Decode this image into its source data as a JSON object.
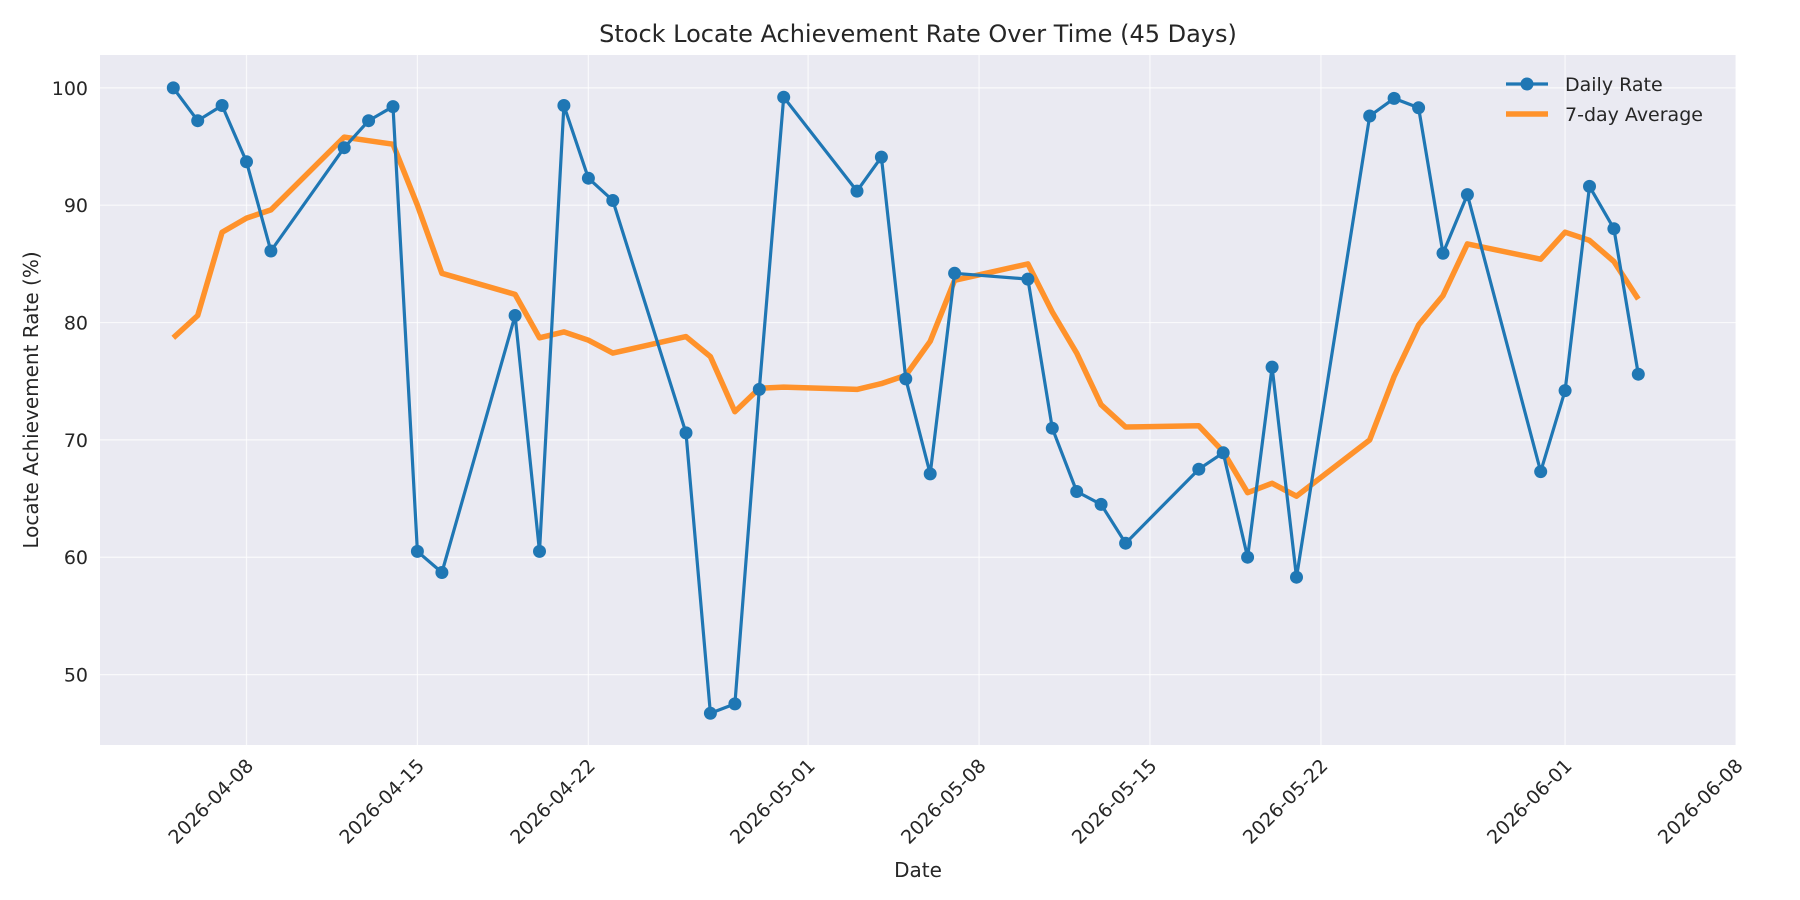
{
  "chart_data": {
    "type": "line",
    "title": "Stock Locate Achievement Rate Over Time (45 Days)",
    "xlabel": "Date",
    "ylabel": "Locate Achievement Rate (%)",
    "xlim": [
      "2026-04-02",
      "2026-06-08"
    ],
    "ylim": [
      44,
      102.8
    ],
    "x_ticks": [
      "2026-04-08",
      "2026-04-15",
      "2026-04-22",
      "2026-05-01",
      "2026-05-08",
      "2026-05-15",
      "2026-05-22",
      "2026-06-01",
      "2026-06-08"
    ],
    "y_ticks": [
      50,
      60,
      70,
      80,
      90,
      100
    ],
    "grid": true,
    "legend_position": "top-right",
    "colors": {
      "background": "#eaeaf2",
      "daily": "#1f77b4",
      "average": "#ff922b"
    },
    "series": [
      {
        "name": "Daily Rate",
        "style": "line-with-markers",
        "points": [
          [
            "2026-04-05",
            100.0
          ],
          [
            "2026-04-06",
            97.2
          ],
          [
            "2026-04-07",
            98.5
          ],
          [
            "2026-04-08",
            93.7
          ],
          [
            "2026-04-09",
            86.1
          ],
          [
            "2026-04-12",
            94.9
          ],
          [
            "2026-04-13",
            97.2
          ],
          [
            "2026-04-14",
            98.4
          ],
          [
            "2026-04-15",
            60.5
          ],
          [
            "2026-04-16",
            58.7
          ],
          [
            "2026-04-19",
            80.6
          ],
          [
            "2026-04-20",
            60.5
          ],
          [
            "2026-04-21",
            98.5
          ],
          [
            "2026-04-22",
            92.3
          ],
          [
            "2026-04-23",
            90.4
          ],
          [
            "2026-04-26",
            70.6
          ],
          [
            "2026-04-27",
            46.7
          ],
          [
            "2026-04-28",
            47.5
          ],
          [
            "2026-04-29",
            74.3
          ],
          [
            "2026-04-30",
            99.2
          ],
          [
            "2026-05-03",
            91.2
          ],
          [
            "2026-05-04",
            94.1
          ],
          [
            "2026-05-05",
            75.2
          ],
          [
            "2026-05-06",
            67.1
          ],
          [
            "2026-05-07",
            84.2
          ],
          [
            "2026-05-10",
            83.7
          ],
          [
            "2026-05-11",
            71.0
          ],
          [
            "2026-05-12",
            65.6
          ],
          [
            "2026-05-13",
            64.5
          ],
          [
            "2026-05-14",
            61.2
          ],
          [
            "2026-05-17",
            67.5
          ],
          [
            "2026-05-18",
            68.9
          ],
          [
            "2026-05-19",
            60.0
          ],
          [
            "2026-05-20",
            76.2
          ],
          [
            "2026-05-21",
            58.3
          ],
          [
            "2026-05-24",
            97.6
          ],
          [
            "2026-05-25",
            99.1
          ],
          [
            "2026-05-26",
            98.3
          ],
          [
            "2026-05-27",
            85.9
          ],
          [
            "2026-05-28",
            90.9
          ],
          [
            "2026-05-31",
            67.3
          ],
          [
            "2026-06-01",
            74.2
          ],
          [
            "2026-06-02",
            91.6
          ],
          [
            "2026-06-03",
            88.0
          ],
          [
            "2026-06-04",
            75.6
          ]
        ]
      },
      {
        "name": "7-day Average",
        "style": "line",
        "points": [
          [
            "2026-04-05",
            78.7
          ],
          [
            "2026-04-06",
            80.6
          ],
          [
            "2026-04-07",
            87.7
          ],
          [
            "2026-04-08",
            88.9
          ],
          [
            "2026-04-09",
            89.6
          ],
          [
            "2026-04-12",
            95.8
          ],
          [
            "2026-04-13",
            95.5
          ],
          [
            "2026-04-14",
            95.2
          ],
          [
            "2026-04-15",
            90.0
          ],
          [
            "2026-04-16",
            84.2
          ],
          [
            "2026-04-19",
            82.4
          ],
          [
            "2026-04-20",
            78.7
          ],
          [
            "2026-04-21",
            79.2
          ],
          [
            "2026-04-22",
            78.5
          ],
          [
            "2026-04-23",
            77.4
          ],
          [
            "2026-04-26",
            78.8
          ],
          [
            "2026-04-27",
            77.1
          ],
          [
            "2026-04-28",
            72.4
          ],
          [
            "2026-04-29",
            74.4
          ],
          [
            "2026-04-30",
            74.5
          ],
          [
            "2026-05-03",
            74.3
          ],
          [
            "2026-05-04",
            74.8
          ],
          [
            "2026-05-05",
            75.5
          ],
          [
            "2026-05-06",
            78.4
          ],
          [
            "2026-05-07",
            83.6
          ],
          [
            "2026-05-10",
            85.0
          ],
          [
            "2026-05-11",
            80.9
          ],
          [
            "2026-05-12",
            77.4
          ],
          [
            "2026-05-13",
            73.0
          ],
          [
            "2026-05-14",
            71.1
          ],
          [
            "2026-05-17",
            71.2
          ],
          [
            "2026-05-18",
            69.0
          ],
          [
            "2026-05-19",
            65.5
          ],
          [
            "2026-05-20",
            66.3
          ],
          [
            "2026-05-21",
            65.2
          ],
          [
            "2026-05-24",
            70.0
          ],
          [
            "2026-05-25",
            75.4
          ],
          [
            "2026-05-26",
            79.8
          ],
          [
            "2026-05-27",
            82.3
          ],
          [
            "2026-05-28",
            86.7
          ],
          [
            "2026-05-31",
            85.4
          ],
          [
            "2026-06-01",
            87.7
          ],
          [
            "2026-06-02",
            87.0
          ],
          [
            "2026-06-03",
            85.2
          ],
          [
            "2026-06-04",
            82.0
          ]
        ]
      }
    ]
  }
}
